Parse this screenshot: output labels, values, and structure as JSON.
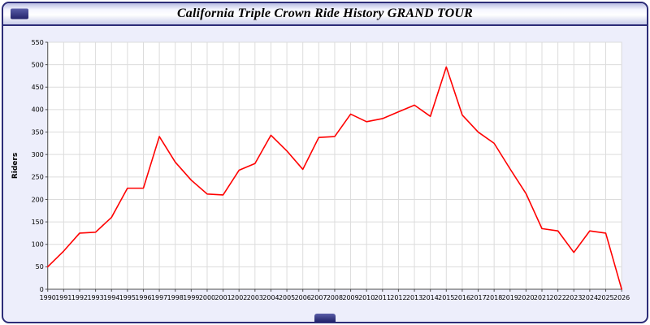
{
  "window": {
    "title": "California Triple Crown Ride History GRAND TOUR"
  },
  "colors": {
    "window_border": "#2d2d78",
    "window_background": "#edeefb",
    "plot_background": "#ffffff",
    "grid": "#dcdcdc",
    "axis": "#4d4d4d",
    "line": "#ff0000",
    "text": "#000000"
  },
  "chart_data": {
    "type": "line",
    "title": "California Triple Crown Ride History GRAND TOUR",
    "xlabel": "",
    "ylabel": "Riders",
    "x": [
      1990,
      1991,
      1992,
      1993,
      1994,
      1995,
      1996,
      1997,
      1998,
      1999,
      2000,
      2001,
      2002,
      2003,
      2004,
      2005,
      2006,
      2007,
      2008,
      2009,
      2010,
      2011,
      2012,
      2013,
      2014,
      2015,
      2016,
      2017,
      2018,
      2019,
      2020,
      2021,
      2022,
      2023,
      2024,
      2025,
      2026
    ],
    "values": [
      50,
      85,
      125,
      127,
      160,
      225,
      225,
      340,
      283,
      243,
      212,
      210,
      265,
      280,
      343,
      308,
      267,
      338,
      340,
      390,
      373,
      380,
      395,
      410,
      385,
      495,
      388,
      350,
      325,
      268,
      213,
      135,
      130,
      82,
      130,
      125,
      0
    ],
    "ylim": [
      0,
      550
    ],
    "ytick_step": 50,
    "grid": true,
    "legend": "none",
    "line_color": "#ff0000"
  }
}
